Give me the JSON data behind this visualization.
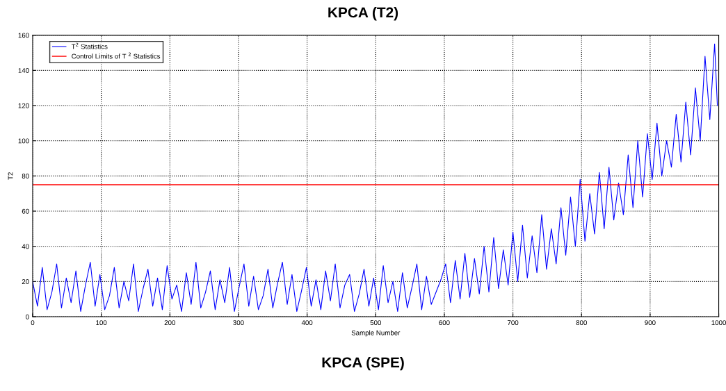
{
  "chart_data": {
    "type": "line",
    "title": "KPCA (T2)",
    "xlabel": "Sample Number",
    "ylabel": "T2",
    "annotations": [
      "KPCA (SPE)"
    ],
    "xlim": [
      0,
      1000
    ],
    "xticks": [
      0,
      100,
      200,
      300,
      400,
      500,
      600,
      700,
      800,
      900,
      1000
    ],
    "ylim": [
      0,
      160
    ],
    "yticks": [
      0,
      20,
      40,
      60,
      80,
      100,
      120,
      140,
      160
    ],
    "grid": true,
    "legend": "top left",
    "marker": "none",
    "line_style": "solid",
    "x": [
      0,
      7,
      14,
      21,
      28,
      35,
      42,
      49,
      56,
      63,
      70,
      77,
      84,
      91,
      98,
      105,
      112,
      119,
      126,
      133,
      140,
      147,
      154,
      161,
      168,
      175,
      182,
      189,
      196,
      203,
      210,
      217,
      224,
      231,
      238,
      245,
      252,
      259,
      266,
      273,
      280,
      287,
      294,
      301,
      308,
      315,
      322,
      329,
      336,
      343,
      350,
      357,
      364,
      371,
      378,
      385,
      392,
      399,
      406,
      413,
      420,
      427,
      434,
      441,
      448,
      455,
      462,
      469,
      476,
      483,
      490,
      497,
      504,
      511,
      518,
      525,
      532,
      539,
      546,
      553,
      560,
      567,
      574,
      581,
      588,
      595,
      602,
      609,
      616,
      623,
      630,
      637,
      644,
      651,
      658,
      665,
      672,
      679,
      686,
      693,
      700,
      707,
      714,
      721,
      728,
      735,
      742,
      749,
      756,
      763,
      770,
      777,
      784,
      791,
      798,
      805,
      812,
      819,
      826,
      833,
      840,
      847,
      854,
      861,
      868,
      875,
      882,
      889,
      896,
      903,
      910,
      917,
      924,
      931,
      938,
      945,
      952,
      959,
      966,
      973,
      980,
      987,
      994,
      998
    ],
    "series": [
      {
        "name": "T$^{2}$ Statistics",
        "color": "#0000ff",
        "values": [
          20,
          6,
          28,
          4,
          14,
          30,
          5,
          22,
          8,
          26,
          3,
          18,
          31,
          6,
          24,
          4,
          12,
          28,
          5,
          20,
          9,
          30,
          3,
          16,
          27,
          6,
          22,
          4,
          29,
          10,
          18,
          3,
          25,
          7,
          31,
          5,
          14,
          26,
          4,
          21,
          8,
          28,
          3,
          17,
          30,
          6,
          23,
          4,
          12,
          27,
          5,
          19,
          31,
          7,
          24,
          3,
          15,
          28,
          6,
          21,
          4,
          26,
          9,
          30,
          5,
          18,
          24,
          3,
          13,
          27,
          6,
          22,
          4,
          29,
          8,
          20,
          3,
          25,
          5,
          17,
          30,
          4,
          23,
          7,
          14,
          21,
          30,
          8,
          32,
          10,
          36,
          11,
          33,
          13,
          40,
          14,
          45,
          16,
          38,
          18,
          48,
          20,
          52,
          22,
          46,
          25,
          58,
          27,
          50,
          30,
          62,
          35,
          68,
          40,
          78,
          43,
          70,
          47,
          82,
          50,
          85,
          55,
          76,
          58,
          92,
          62,
          100,
          68,
          104,
          78,
          110,
          80,
          100,
          85,
          115,
          88,
          122,
          92,
          130,
          100,
          148,
          112,
          155,
          120
        ]
      }
    ],
    "ref_lines": [
      {
        "axis": "y",
        "value": 75,
        "label": "Control Limits of T $^{2}$ Statistics",
        "color": "#ff0000",
        "line_style": "solid"
      }
    ]
  }
}
